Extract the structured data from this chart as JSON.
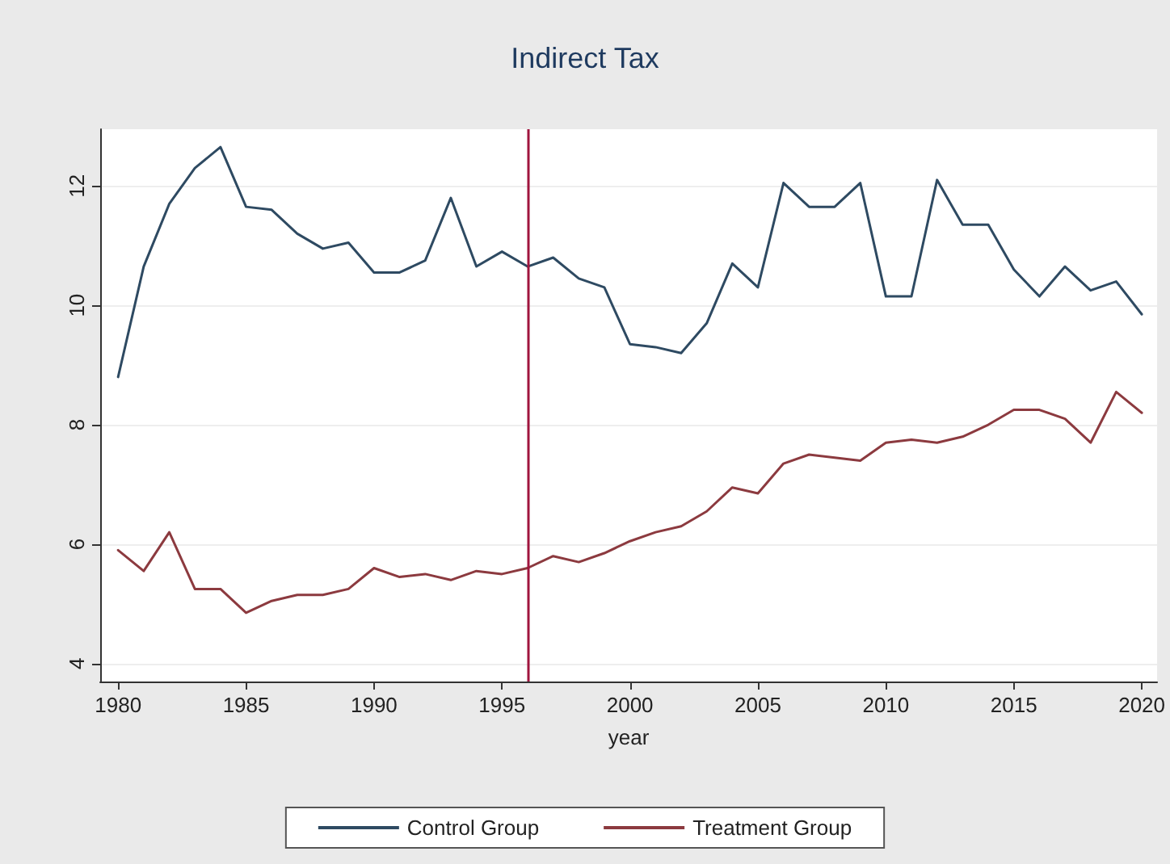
{
  "chart_data": {
    "type": "line",
    "title": "Indirect Tax",
    "xlabel": "year",
    "x": [
      1980,
      1981,
      1982,
      1983,
      1984,
      1985,
      1986,
      1987,
      1988,
      1989,
      1990,
      1991,
      1992,
      1993,
      1994,
      1995,
      1996,
      1997,
      1998,
      1999,
      2000,
      2001,
      2002,
      2003,
      2004,
      2005,
      2006,
      2007,
      2008,
      2009,
      2010,
      2011,
      2012,
      2013,
      2014,
      2015,
      2016,
      2017,
      2018,
      2019,
      2020
    ],
    "series": [
      {
        "name": "Control Group",
        "color": "#2e4a62",
        "values": [
          8.8,
          10.65,
          11.7,
          12.3,
          12.65,
          11.65,
          11.6,
          11.2,
          10.95,
          11.05,
          10.55,
          10.55,
          10.75,
          11.8,
          10.65,
          10.9,
          10.65,
          10.8,
          10.45,
          10.3,
          9.35,
          9.3,
          9.2,
          9.7,
          10.7,
          10.3,
          12.05,
          11.65,
          11.65,
          12.05,
          10.15,
          10.15,
          12.1,
          11.35,
          11.35,
          10.6,
          10.15,
          10.65,
          10.25,
          10.4,
          9.85
        ]
      },
      {
        "name": "Treatment Group",
        "color": "#8c3a3f",
        "values": [
          5.9,
          5.55,
          6.2,
          5.25,
          5.25,
          4.85,
          5.05,
          5.15,
          5.15,
          5.25,
          5.6,
          5.45,
          5.5,
          5.4,
          5.55,
          5.5,
          5.6,
          5.8,
          5.7,
          5.85,
          6.05,
          6.2,
          6.3,
          6.55,
          6.95,
          6.85,
          7.35,
          7.5,
          7.45,
          7.4,
          7.7,
          7.75,
          7.7,
          7.8,
          8.0,
          8.25,
          8.25,
          8.1,
          7.7,
          8.55,
          8.2
        ]
      }
    ],
    "xlim": [
      1979.3,
      2020.6
    ],
    "xticks": [
      1980,
      1985,
      1990,
      1995,
      2000,
      2005,
      2010,
      2015,
      2020
    ],
    "ylim": [
      3.7,
      12.95
    ],
    "yticks": [
      4,
      6,
      8,
      10,
      12
    ],
    "ref_lines": [
      {
        "axis": "x",
        "value": 1996,
        "color": "#a0153e"
      }
    ],
    "grid": "y",
    "legend": "bottom",
    "marker": "none",
    "line_style": "solid"
  }
}
